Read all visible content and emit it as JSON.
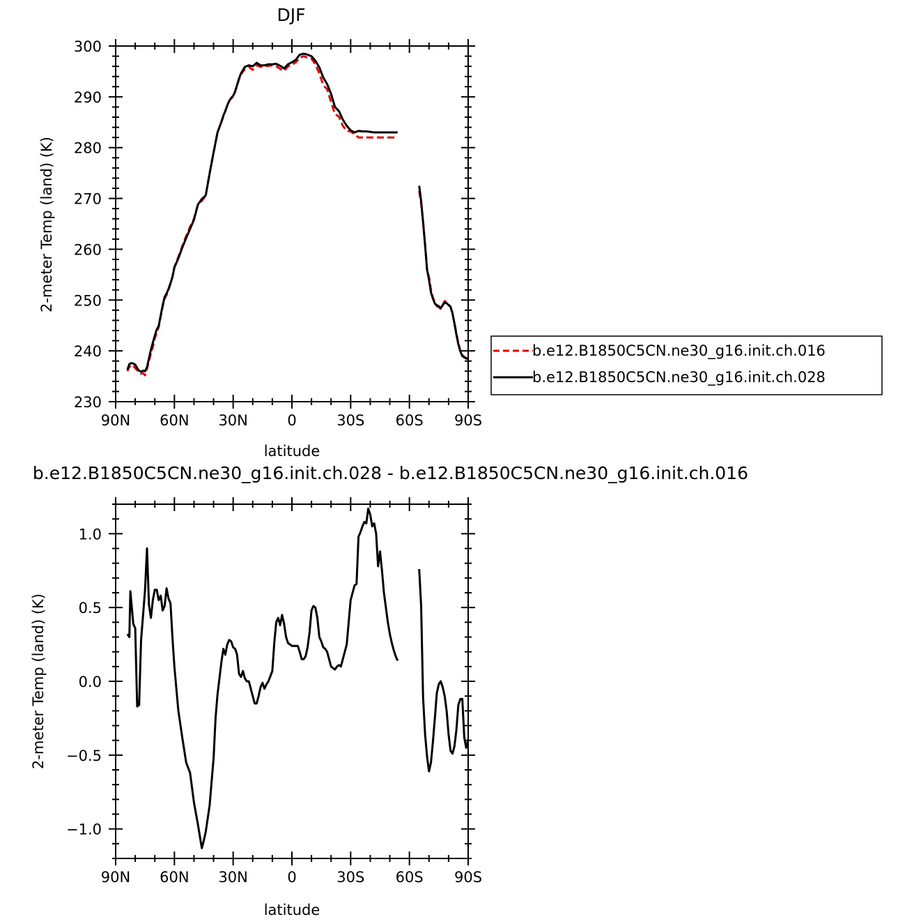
{
  "chart_data": [
    {
      "type": "line",
      "title": "DJF",
      "xlabel": "latitude",
      "ylabel": "2-meter Temp (land) (K)",
      "x_reversed_note_free": true,
      "xlim": [
        90,
        -90
      ],
      "ylim": [
        230,
        300
      ],
      "x_ticks": [
        90,
        60,
        30,
        0,
        -30,
        -60,
        -90
      ],
      "x_tick_labels": [
        "90N",
        "60N",
        "30N",
        "0",
        "30S",
        "60S",
        "90S"
      ],
      "y_ticks": [
        230,
        240,
        250,
        260,
        270,
        280,
        290,
        300
      ],
      "y_tick_labels": [
        "230",
        "240",
        "250",
        "260",
        "270",
        "280",
        "290",
        "300"
      ],
      "grid": false,
      "legend_position": "right",
      "series": [
        {
          "name": "b.e12.B1850C5CN.ne30_g16.init.ch.016",
          "color": "#e00000",
          "dash": "dashed",
          "segments": [
            {
              "x": [
                84,
                83,
                82,
                81,
                80,
                79,
                78,
                77,
                76,
                75,
                74,
                73,
                72,
                71,
                70,
                69,
                68,
                67,
                66,
                65,
                64,
                63,
                62,
                61,
                60,
                58,
                56,
                54,
                52,
                50,
                48,
                46,
                44,
                42,
                40,
                38,
                36,
                35,
                34,
                33,
                32,
                31,
                30,
                29,
                28,
                27,
                26,
                24,
                22,
                20,
                18,
                16,
                14,
                12,
                10,
                8,
                6,
                4,
                2,
                0,
                -2,
                -4,
                -6,
                -8,
                -10,
                -12,
                -14,
                -16,
                -18,
                -20,
                -22,
                -24,
                -26,
                -28,
                -30,
                -32,
                -34,
                -36,
                -38,
                -40,
                -42,
                -44,
                -46,
                -48,
                -50,
                -52,
                -54
              ],
              "y": [
                236.0,
                237.0,
                236.8,
                237.1,
                236.6,
                236.2,
                236.0,
                235.5,
                235.6,
                235.2,
                236.5,
                238.0,
                239.5,
                240.8,
                242.5,
                243.6,
                244.7,
                246.8,
                248.7,
                250.3,
                251.0,
                252.0,
                253.2,
                254.6,
                256.5,
                258.5,
                260.6,
                262.6,
                264.4,
                266.0,
                268.8,
                269.5,
                270.6,
                275.0,
                279.0,
                283.0,
                285.0,
                286.2,
                287.2,
                288.3,
                289.2,
                289.7,
                290.0,
                291.0,
                292.2,
                293.5,
                294.4,
                295.5,
                295.9,
                295.3,
                296.2,
                295.9,
                296.0,
                296.1,
                296.2,
                296.0,
                295.5,
                295.1,
                296.0,
                296.3,
                296.8,
                297.7,
                298.0,
                297.7,
                297.5,
                296.4,
                294.6,
                292.3,
                291.5,
                289.0,
                286.6,
                286.1,
                284.3,
                283.3,
                283.2,
                282.6,
                282.0,
                282.0,
                282.0,
                282.0,
                282.0,
                282.0,
                282.0,
                282.0,
                282.0,
                282.0,
                282.0
              ]
            },
            {
              "x": [
                -65,
                -66,
                -67,
                -68,
                -69,
                -70,
                -71,
                -72,
                -73,
                -74,
                -75,
                -76,
                -77,
                -78,
                -79,
                -80,
                -81,
                -82,
                -83,
                -84,
                -85,
                -86,
                -87,
                -88,
                -89,
                -90
              ],
              "y": [
                271.5,
                269.0,
                265.5,
                261.0,
                256.0,
                254.5,
                252.0,
                250.5,
                249.5,
                248.8,
                248.6,
                248.3,
                249.0,
                249.8,
                249.6,
                249.2,
                248.6,
                247.3,
                245.5,
                243.5,
                241.5,
                240.0,
                239.2,
                238.8,
                238.6,
                238.5
              ]
            }
          ]
        },
        {
          "name": "b.e12.B1850C5CN.ne30_g16.init.ch.028",
          "color": "#000000",
          "dash": "solid",
          "segments": [
            {
              "x": [
                84,
                83,
                82,
                81,
                80,
                79,
                78,
                77,
                76,
                75,
                74,
                73,
                72,
                71,
                70,
                69,
                68,
                67,
                66,
                65,
                64,
                63,
                62,
                61,
                60,
                58,
                56,
                54,
                52,
                50,
                48,
                46,
                44,
                42,
                40,
                38,
                36,
                35,
                34,
                33,
                32,
                31,
                30,
                29,
                28,
                27,
                26,
                24,
                22,
                20,
                18,
                16,
                14,
                12,
                10,
                8,
                6,
                4,
                2,
                0,
                -2,
                -4,
                -6,
                -8,
                -10,
                -12,
                -14,
                -16,
                -18,
                -20,
                -22,
                -24,
                -26,
                -28,
                -30,
                -32,
                -34,
                -36,
                -38,
                -40,
                -42,
                -44,
                -46,
                -48,
                -50,
                -52,
                -54
              ],
              "y": [
                236.3,
                237.4,
                237.6,
                237.5,
                237.3,
                236.6,
                236.1,
                235.9,
                236.1,
                236.0,
                236.8,
                238.5,
                240.2,
                241.6,
                243.0,
                244.2,
                244.9,
                247.0,
                249.0,
                250.6,
                251.3,
                252.2,
                253.3,
                254.5,
                256.4,
                258.2,
                260.3,
                262.2,
                264.0,
                265.8,
                268.8,
                269.9,
                270.6,
                274.9,
                279.1,
                283.0,
                285.1,
                286.3,
                287.2,
                288.3,
                289.2,
                289.8,
                290.2,
                291.1,
                292.3,
                293.6,
                294.6,
                295.9,
                296.2,
                296.0,
                296.7,
                296.2,
                296.2,
                296.4,
                296.4,
                296.5,
                296.1,
                295.6,
                296.4,
                296.8,
                297.3,
                298.3,
                298.5,
                298.3,
                298.0,
                297.1,
                295.8,
                293.8,
                292.5,
                290.6,
                288.0,
                287.2,
                285.5,
                284.3,
                283.4,
                283.0,
                283.3,
                283.2,
                283.2,
                283.1,
                283.0,
                283.0,
                283.0,
                283.0,
                283.0,
                283.0,
                283.0
              ]
            },
            {
              "x": [
                -65,
                -66,
                -67,
                -68,
                -69,
                -70,
                -71,
                -72,
                -73,
                -74,
                -75,
                -76,
                -77,
                -78,
                -79,
                -80,
                -81,
                -82,
                -83,
                -84,
                -85,
                -86,
                -87,
                -88,
                -89,
                -90
              ],
              "y": [
                272.5,
                269.5,
                265.3,
                260.7,
                256.0,
                254.0,
                251.5,
                250.3,
                249.3,
                249.0,
                248.8,
                248.4,
                249.0,
                249.5,
                249.4,
                249.0,
                248.7,
                247.4,
                245.4,
                243.2,
                241.3,
                239.9,
                239.0,
                238.7,
                238.5,
                238.4
              ]
            }
          ]
        }
      ]
    },
    {
      "type": "line",
      "title": "b.e12.B1850C5CN.ne30_g16.init.ch.028 - b.e12.B1850C5CN.ne30_g16.init.ch.016",
      "xlabel": "latitude",
      "ylabel": "2-meter Temp (land) (K)",
      "xlim": [
        90,
        -90
      ],
      "ylim": [
        -1.2,
        1.2
      ],
      "x_ticks": [
        90,
        60,
        30,
        0,
        -30,
        -60,
        -90
      ],
      "x_tick_labels": [
        "90N",
        "60N",
        "30N",
        "0",
        "30S",
        "60S",
        "90S"
      ],
      "y_ticks": [
        1.0,
        0.5,
        0.0,
        -0.5,
        -1.0
      ],
      "y_tick_labels": [
        "1.0",
        "0.5",
        "0.0",
        "−0.5",
        "−1.0"
      ],
      "grid": false,
      "series": [
        {
          "color": "#000000",
          "dash": "solid",
          "segments": [
            {
              "x": [
                84,
                83,
                82.5,
                81,
                80,
                79,
                78,
                77,
                76,
                75,
                74,
                73,
                72,
                71,
                70,
                69,
                68,
                67,
                66,
                65,
                64,
                63,
                62,
                61,
                60,
                58,
                56,
                54,
                52,
                50,
                48,
                46,
                45,
                44,
                42,
                40,
                39,
                38,
                36,
                35,
                34,
                33,
                32,
                31,
                30,
                29,
                28,
                27,
                26,
                25,
                24,
                23,
                22,
                20,
                19,
                18,
                17,
                16,
                15,
                14,
                13,
                12,
                10,
                9,
                8,
                7,
                6,
                5,
                4,
                3,
                2,
                1,
                0,
                -1,
                -2,
                -3,
                -4,
                -5,
                -6,
                -7,
                -8,
                -9,
                -10,
                -11,
                -12,
                -13,
                -14,
                -15,
                -16,
                -17,
                -18,
                -19,
                -20,
                -21,
                -22,
                -23,
                -24,
                -25,
                -26,
                -27,
                -28,
                -29,
                -30,
                -31,
                -32,
                -33,
                -34,
                -35,
                -36,
                -37,
                -38,
                -39,
                -40,
                -41,
                -42,
                -43,
                -44,
                -45,
                -46,
                -47,
                -48,
                -49,
                -50,
                -51,
                -52,
                -53,
                -54
              ],
              "y": [
                0.32,
                0.3,
                0.61,
                0.39,
                0.36,
                -0.17,
                -0.16,
                0.28,
                0.45,
                0.62,
                0.9,
                0.52,
                0.43,
                0.55,
                0.62,
                0.62,
                0.55,
                0.58,
                0.48,
                0.51,
                0.63,
                0.56,
                0.53,
                0.3,
                0.1,
                -0.2,
                -0.38,
                -0.55,
                -0.62,
                -0.82,
                -0.97,
                -1.13,
                -1.08,
                -1.02,
                -0.84,
                -0.52,
                -0.25,
                -0.09,
                0.13,
                0.22,
                0.18,
                0.25,
                0.28,
                0.27,
                0.23,
                0.22,
                0.18,
                0.05,
                0.03,
                0.07,
                0.02,
                0.0,
                0.0,
                -0.1,
                -0.15,
                -0.15,
                -0.1,
                -0.04,
                -0.01,
                -0.05,
                -0.02,
                0.0,
                0.07,
                0.26,
                0.4,
                0.43,
                0.38,
                0.45,
                0.39,
                0.3,
                0.26,
                0.25,
                0.24,
                0.24,
                0.24,
                0.24,
                0.2,
                0.15,
                0.15,
                0.17,
                0.23,
                0.33,
                0.48,
                0.51,
                0.5,
                0.43,
                0.3,
                0.27,
                0.23,
                0.22,
                0.2,
                0.15,
                0.1,
                0.09,
                0.08,
                0.1,
                0.11,
                0.1,
                0.15,
                0.2,
                0.25,
                0.4,
                0.55,
                0.6,
                0.65,
                0.66,
                0.98,
                1.01,
                1.05,
                1.08,
                1.07,
                1.17,
                1.13,
                1.05,
                1.07,
                1.0,
                0.78,
                0.88,
                0.75,
                0.6,
                0.5,
                0.4,
                0.32,
                0.26,
                0.21,
                0.17,
                0.14
              ]
            },
            {
              "x": [
                -65,
                -66,
                -67,
                -68,
                -69,
                -70,
                -71,
                -72,
                -73,
                -74,
                -75,
                -76,
                -77,
                -78,
                -79,
                -80,
                -81,
                -82,
                -83,
                -84,
                -85,
                -86,
                -87,
                -88,
                -89,
                -90
              ],
              "y": [
                0.76,
                0.51,
                -0.11,
                -0.36,
                -0.51,
                -0.61,
                -0.55,
                -0.41,
                -0.25,
                -0.08,
                -0.02,
                0.0,
                -0.04,
                -0.1,
                -0.2,
                -0.36,
                -0.47,
                -0.49,
                -0.44,
                -0.33,
                -0.16,
                -0.12,
                -0.12,
                -0.38,
                -0.45,
                -0.4
              ]
            }
          ]
        }
      ]
    }
  ]
}
